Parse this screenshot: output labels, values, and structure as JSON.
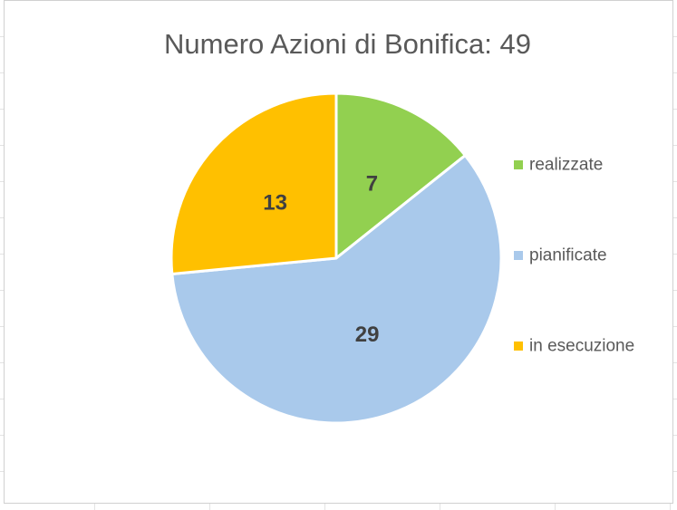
{
  "chart_data": {
    "type": "pie",
    "title": "Numero Azioni di Bonifica: 49",
    "slices": [
      {
        "label": "realizzate",
        "value": 7,
        "color": "#92d050"
      },
      {
        "label": "pianificate",
        "value": 29,
        "color": "#a9c9eb"
      },
      {
        "label": "in esecuzione",
        "value": 13,
        "color": "#ffc000"
      }
    ],
    "legend_position": "right",
    "start_angle_deg": 0,
    "direction": "clockwise"
  }
}
